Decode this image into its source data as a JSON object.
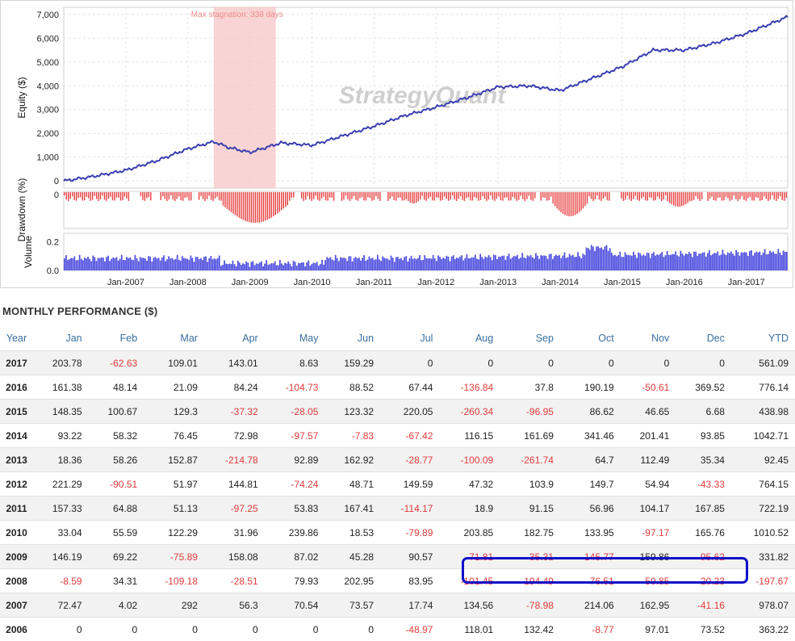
{
  "chart_data": [
    {
      "type": "line",
      "ylabel": "Equity ($)",
      "yticks": [
        7000,
        6000,
        5000,
        4000,
        3000,
        2000,
        1000,
        0
      ],
      "ytick_labels": [
        "7,000",
        "6,000",
        "5,000",
        "4,000",
        "3,000",
        "2,000",
        "1,000",
        "0"
      ],
      "ylim": [
        -300,
        7300
      ],
      "xlim": [
        "2006-01",
        "2017-09"
      ],
      "grid": true,
      "line_color": "#3b3fb1",
      "annotation": "Max stagnation: 338 days",
      "stagnation_band": [
        "2008-06",
        "2009-06"
      ],
      "watermark": "StrategyQuant",
      "series": [
        {
          "x": [
            "2006-01",
            "2006-07",
            "2007-01",
            "2007-07",
            "2008-01",
            "2008-06",
            "2008-09",
            "2009-01",
            "2009-07",
            "2010-01",
            "2010-07",
            "2011-01",
            "2011-07",
            "2012-01",
            "2012-07",
            "2013-01",
            "2013-07",
            "2014-01",
            "2014-07",
            "2015-01",
            "2015-07",
            "2016-01",
            "2016-07",
            "2017-01",
            "2017-09"
          ],
          "values": [
            0,
            200,
            450,
            850,
            1350,
            1650,
            1400,
            1200,
            1600,
            1500,
            1900,
            2300,
            2750,
            3100,
            3500,
            3950,
            4000,
            3800,
            4300,
            4800,
            5500,
            5500,
            5800,
            6200,
            6900
          ]
        }
      ]
    },
    {
      "type": "bar",
      "ylabel": "Drawdown (%)",
      "ytick_labels": [
        "0"
      ],
      "color": "#e84040"
    },
    {
      "type": "bar",
      "ylabel": "Volume",
      "ytick_labels": [
        "0.2",
        "0.0"
      ],
      "ylim": [
        0,
        0.26
      ],
      "color": "#4b4bde",
      "xtick_labels": [
        "Jan-2007",
        "Jan-2008",
        "Jan-2009",
        "Jan-2010",
        "Jan-2011",
        "Jan-2012",
        "Jan-2013",
        "Jan-2014",
        "Jan-2015",
        "Jan-2016",
        "Jan-2017"
      ]
    },
    {
      "type": "table",
      "title": "MONTHLY PERFORMANCE ($)",
      "columns": [
        "Year",
        "Jan",
        "Feb",
        "Mar",
        "Apr",
        "May",
        "Jun",
        "Jul",
        "Aug",
        "Sep",
        "Oct",
        "Nov",
        "Dec",
        "YTD"
      ],
      "rows": [
        [
          "2017",
          "203.78",
          "-62.63",
          "109.01",
          "143.01",
          "8.63",
          "159.29",
          "0",
          "0",
          "0",
          "0",
          "0",
          "0",
          "561.09"
        ],
        [
          "2016",
          "161.38",
          "48.14",
          "21.09",
          "84.24",
          "-104.73",
          "88.52",
          "67.44",
          "-136.84",
          "37.8",
          "190.19",
          "-50.61",
          "369.52",
          "776.14"
        ],
        [
          "2015",
          "148.35",
          "100.67",
          "129.3",
          "-37.32",
          "-28.05",
          "123.32",
          "220.05",
          "-260.34",
          "-96.95",
          "86.62",
          "46.65",
          "6.68",
          "438.98"
        ],
        [
          "2014",
          "93.22",
          "58.32",
          "76.45",
          "72.98",
          "-97.57",
          "-7.83",
          "-67.42",
          "116.15",
          "161.69",
          "341.46",
          "201.41",
          "93.85",
          "1042.71"
        ],
        [
          "2013",
          "18.36",
          "58.26",
          "152.87",
          "-214.78",
          "92.89",
          "162.92",
          "-28.77",
          "-100.09",
          "-261.74",
          "64.7",
          "112.49",
          "35.34",
          "92.45"
        ],
        [
          "2012",
          "221.29",
          "-90.51",
          "51.97",
          "144.81",
          "-74.24",
          "48.71",
          "149.59",
          "47.32",
          "103.9",
          "149.7",
          "54.94",
          "-43.33",
          "764.15"
        ],
        [
          "2011",
          "157.33",
          "64.88",
          "51.13",
          "-97.25",
          "53.83",
          "167.41",
          "-114.17",
          "18.9",
          "91.15",
          "56.96",
          "104.17",
          "167.85",
          "722.19"
        ],
        [
          "2010",
          "33.04",
          "55.59",
          "122.29",
          "31.96",
          "239.86",
          "18.53",
          "-79.89",
          "203.85",
          "182.75",
          "133.95",
          "-97.17",
          "165.76",
          "1010.52"
        ],
        [
          "2009",
          "146.19",
          "69.22",
          "-75.89",
          "158.08",
          "87.02",
          "45.28",
          "90.57",
          "-71.81",
          "-35.31",
          "-145.77",
          "159.86",
          "-95.62",
          "331.82"
        ],
        [
          "2008",
          "-8.59",
          "34.31",
          "-109.18",
          "-28.51",
          "79.93",
          "202.95",
          "83.95",
          "-101.45",
          "-194.49",
          "-76.51",
          "-59.85",
          "-20.23",
          "-197.67"
        ],
        [
          "2007",
          "72.47",
          "4.02",
          "292",
          "56.3",
          "70.54",
          "73.57",
          "17.74",
          "134.56",
          "-78.98",
          "214.06",
          "162.95",
          "-41.16",
          "978.07"
        ],
        [
          "2006",
          "0",
          "0",
          "0",
          "0",
          "0",
          "0",
          "-48.97",
          "118.01",
          "132.42",
          "-8.77",
          "97.01",
          "73.52",
          "363.22"
        ]
      ],
      "highlight": {
        "row": "2008",
        "from": "Aug",
        "to": "Dec",
        "color": "#1010c8"
      },
      "negative_color": "#e03c3c",
      "header_color": "#3a6fa0"
    }
  ]
}
